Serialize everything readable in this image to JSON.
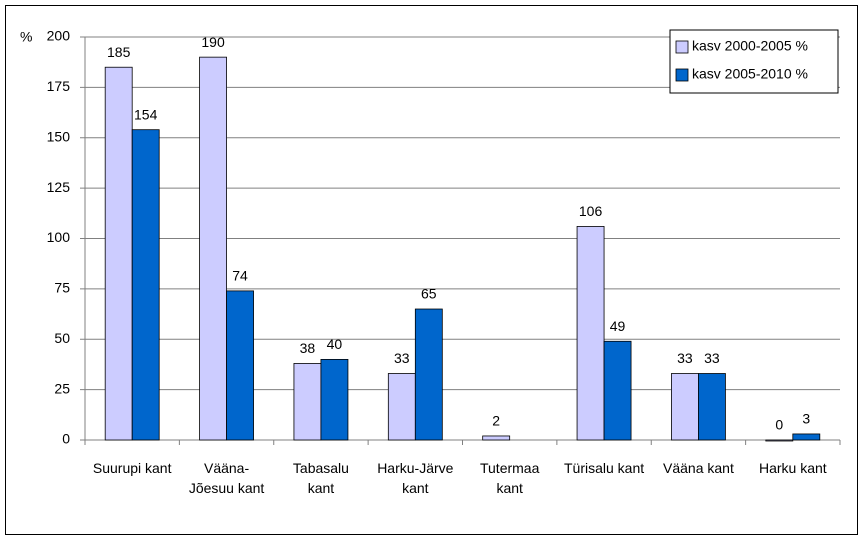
{
  "chart_data": {
    "type": "bar",
    "y_label": "%",
    "categories": [
      "Suurupi kant",
      "Vääna-Jõesuu kant",
      "Tabasalu kant",
      "Harku-Järve kant",
      "Tutermaa kant",
      "Türisalu kant",
      "Vääna kant",
      "Harku kant"
    ],
    "series": [
      {
        "name": "kasv 2000-2005 %",
        "color": "#ccccff",
        "values": [
          185,
          190,
          38,
          33,
          2,
          106,
          33,
          0
        ]
      },
      {
        "name": "kasv 2005-2010 %",
        "color": "#0066cc",
        "values": [
          154,
          74,
          40,
          65,
          null,
          49,
          33,
          3
        ]
      }
    ],
    "ylim": [
      0,
      200
    ],
    "yticks": [
      0,
      25,
      50,
      75,
      100,
      125,
      150,
      175,
      200
    ],
    "grid": true,
    "legend": "top-right"
  }
}
